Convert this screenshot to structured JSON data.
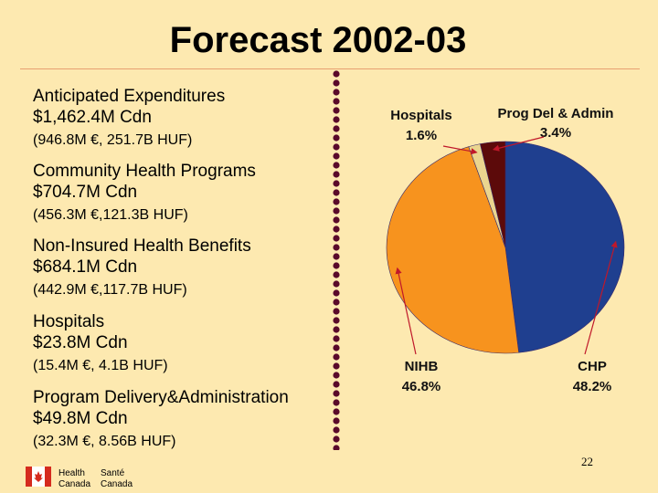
{
  "slide": {
    "title": "Forecast 2002-03",
    "page_number": "22",
    "footer_logo": {
      "left_top": "Health",
      "left_bottom": "Canada",
      "right_top": "Santé",
      "right_bottom": "Canada"
    }
  },
  "expenditures": [
    {
      "line1": "Anticipated Expenditures",
      "line2": "$1,462.4M Cdn",
      "line3": "(946.8M €, 251.7B HUF)"
    },
    {
      "line1": "Community Health Programs",
      "line2": "$704.7M Cdn",
      "line3": "(456.3M €,121.3B HUF)"
    },
    {
      "line1": "Non-Insured Health Benefits",
      "line2": "$684.1M Cdn",
      "line3": "(442.9M €,117.7B HUF)"
    },
    {
      "line1": "Hospitals",
      "line2": "$23.8M  Cdn",
      "line3": "(15.4M €,   4.1B HUF)"
    },
    {
      "line1": "Program Delivery&Administration",
      "line2": "$49.8M  Cdn",
      "line3": "(32.3M €, 8.56B HUF)"
    }
  ],
  "chart_data": {
    "type": "pie",
    "slices": [
      {
        "name": "CHP",
        "value": 48.2,
        "label": "48.2%",
        "color": "#1f3f8f"
      },
      {
        "name": "NIHB",
        "value": 46.8,
        "label": "46.8%",
        "color": "#f7931e"
      },
      {
        "name": "Hospitals",
        "value": 1.6,
        "label": "1.6%",
        "color": "#ead58f"
      },
      {
        "name": "Prog Del & Admin",
        "value": 3.4,
        "label": "3.4%",
        "color": "#5c0a0a"
      }
    ]
  }
}
